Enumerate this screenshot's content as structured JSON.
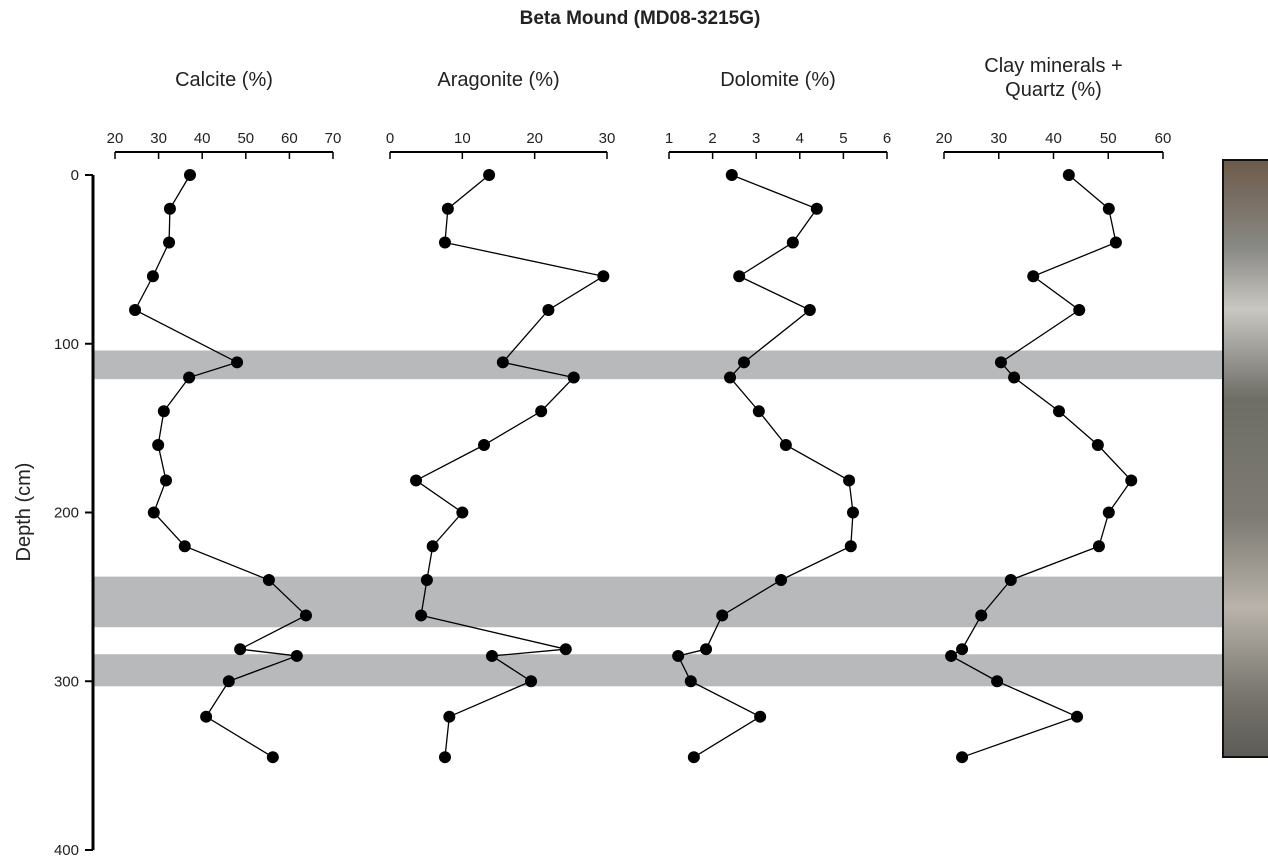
{
  "title": "Beta Mound (MD08-3215G)",
  "depth_axis": {
    "label": "Depth (cm)",
    "lim": [
      0,
      400
    ],
    "ticks": [
      0,
      100,
      200,
      300,
      400
    ]
  },
  "bands": [
    [
      104,
      121
    ],
    [
      238,
      268
    ],
    [
      284,
      303
    ]
  ],
  "depths": [
    0,
    20,
    40,
    60,
    80,
    111,
    120,
    140,
    160,
    181,
    200,
    220,
    240,
    261,
    281,
    285,
    300,
    321,
    345
  ],
  "chart_data": [
    {
      "type": "line",
      "title": "Calcite (%)",
      "xlim": [
        20,
        70
      ],
      "xticks": [
        20,
        30,
        40,
        50,
        60,
        70
      ],
      "color": "#000000",
      "values": [
        37.2,
        32.6,
        32.4,
        28.7,
        24.6,
        48,
        37,
        31.2,
        29.9,
        31.7,
        28.9,
        36,
        55.3,
        63.8,
        48.7,
        61.7,
        46.1,
        40.9,
        56.2
      ]
    },
    {
      "type": "line",
      "title": "Aragonite (%)",
      "xlim": [
        0,
        30
      ],
      "xticks": [
        0,
        10,
        20,
        30
      ],
      "color": "#000000",
      "values": [
        13.7,
        8.0,
        7.6,
        29.5,
        21.9,
        15.6,
        25.4,
        20.9,
        13.0,
        3.6,
        10.0,
        5.9,
        5.1,
        4.3,
        24.3,
        14.1,
        19.5,
        8.2,
        7.6
      ]
    },
    {
      "type": "line",
      "title": "Dolomite (%)",
      "xlim": [
        1,
        6
      ],
      "xticks": [
        1,
        2,
        3,
        4,
        5,
        6
      ],
      "color": "#000000",
      "values": [
        2.44,
        4.39,
        3.84,
        2.61,
        4.23,
        2.72,
        2.4,
        3.06,
        3.68,
        5.13,
        5.22,
        5.17,
        3.57,
        2.22,
        1.85,
        1.21,
        1.5,
        3.09,
        1.57
      ]
    },
    {
      "type": "line",
      "title": "Clay minerals + Quartz (%)",
      "xlim": [
        20,
        60
      ],
      "xticks": [
        20,
        30,
        40,
        50,
        60
      ],
      "color": "#000000",
      "values": [
        42.8,
        50.1,
        51.4,
        36.3,
        44.7,
        30.4,
        32.8,
        41.0,
        48.1,
        54.2,
        50.1,
        48.3,
        32.2,
        26.8,
        23.3,
        21.3,
        29.7,
        44.3,
        23.3
      ]
    }
  ]
}
